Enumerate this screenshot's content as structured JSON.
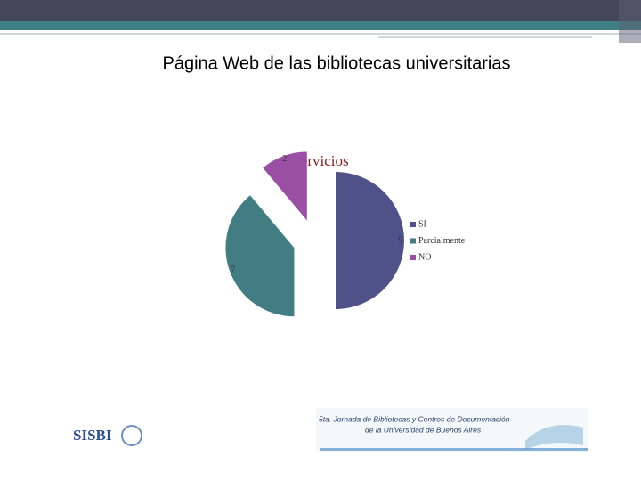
{
  "heading": "Página Web de las bibliotecas universitarias",
  "chart_data": {
    "type": "pie",
    "title": "Servicios",
    "categories": [
      "SI",
      "Parcialmente",
      "NO"
    ],
    "values": [
      9,
      7,
      2
    ],
    "colors": [
      "#4f5189",
      "#417d82",
      "#9b4fa4"
    ],
    "legend": "right"
  },
  "footer": {
    "logo": "SISBI",
    "banner_line1": "5ta. Jornada de Bibliotecas y Centros de Documentación",
    "banner_line2": "de la Universidad de Buenos Aires"
  }
}
